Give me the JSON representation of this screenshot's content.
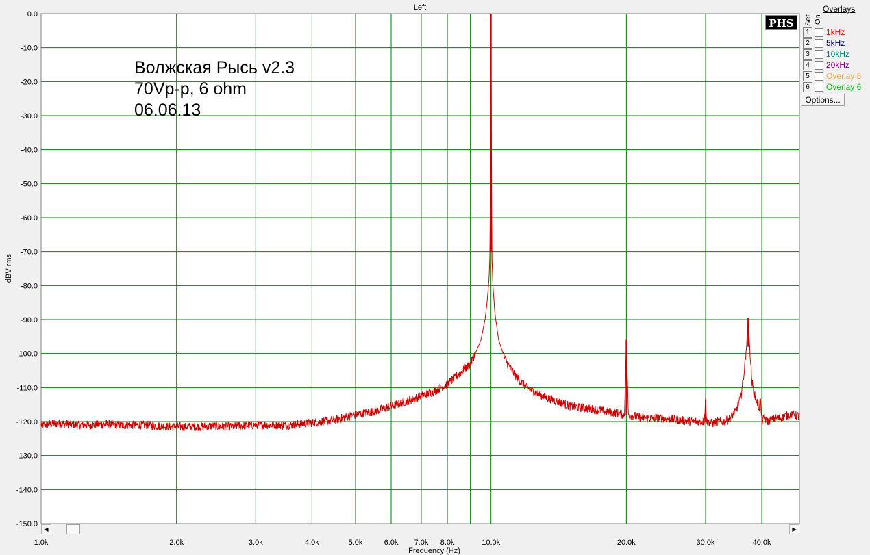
{
  "window": {
    "title": "Left"
  },
  "logo": {
    "text": "PHS"
  },
  "overlays": {
    "title": "Overlays",
    "set_label": "Set",
    "on_label": "On",
    "items": [
      {
        "num": "1",
        "label": "1kHz",
        "color": "#ff0000"
      },
      {
        "num": "2",
        "label": "5kHz",
        "color": "#000080"
      },
      {
        "num": "3",
        "label": "10kHz",
        "color": "#008080"
      },
      {
        "num": "4",
        "label": "20kHz",
        "color": "#800080"
      },
      {
        "num": "5",
        "label": "Overlay 5",
        "color": "#ffa040"
      },
      {
        "num": "6",
        "label": "Overlay 6",
        "color": "#00c000"
      }
    ],
    "options_label": "Options..."
  },
  "chart_data": {
    "type": "line",
    "title": "Left",
    "xlabel": "Frequency (Hz)",
    "ylabel": "dBV rms",
    "x_scale": "log",
    "xlim": [
      1000,
      48500
    ],
    "ylim": [
      -150,
      0
    ],
    "x_tick_labels": [
      {
        "value": 1000,
        "label": "1.0k"
      },
      {
        "value": 2000,
        "label": "2.0k"
      },
      {
        "value": 3000,
        "label": "3.0k"
      },
      {
        "value": 4000,
        "label": "4.0k"
      },
      {
        "value": 5000,
        "label": "5.0k"
      },
      {
        "value": 6000,
        "label": "6.0k"
      },
      {
        "value": 7000,
        "label": "7.0k"
      },
      {
        "value": 8000,
        "label": "8.0k"
      },
      {
        "value": 10000,
        "label": "10.0k"
      },
      {
        "value": 20000,
        "label": "20.0k"
      },
      {
        "value": 30000,
        "label": "30.0k"
      },
      {
        "value": 40000,
        "label": "40.0k"
      }
    ],
    "x_gridlines": [
      2000,
      3000,
      4000,
      5000,
      6000,
      7000,
      8000,
      9000,
      10000,
      20000,
      30000,
      40000
    ],
    "y_tick_labels": [
      "0.0",
      "-10.0",
      "-20.0",
      "-30.0",
      "-40.0",
      "-50.0",
      "-60.0",
      "-70.0",
      "-80.0",
      "-90.0",
      "-100.0",
      "-110.0",
      "-120.0",
      "-130.0",
      "-140.0",
      "-150.0"
    ],
    "y_ticks": [
      0,
      -10,
      -20,
      -30,
      -40,
      -50,
      -60,
      -70,
      -80,
      -90,
      -100,
      -110,
      -120,
      -130,
      -140,
      -150
    ],
    "grid": true,
    "background": "#ffffff",
    "grid_color": "#008000",
    "annotations": [
      "Волжская Рысь v2.3",
      "70Vp-p, 6 ohm",
      "06.06.13"
    ],
    "series": [
      {
        "color": "#cc0000",
        "x": [
          1000,
          1100,
          1200,
          1300,
          1400,
          1500,
          1600,
          1700,
          1800,
          1900,
          2000,
          2200,
          2400,
          2600,
          2800,
          3000,
          3300,
          3600,
          3900,
          4200,
          4500,
          5000,
          5500,
          6000,
          6500,
          7000,
          7500,
          8000,
          8500,
          9000,
          9300,
          9500,
          9700,
          9800,
          9900,
          9950,
          10000,
          10050,
          10100,
          10200,
          10400,
          10700,
          11000,
          11500,
          12000,
          13000,
          14000,
          15000,
          16000,
          17000,
          18000,
          19000,
          19800,
          20000,
          20200,
          21000,
          22000,
          24000,
          26000,
          28000,
          29800,
          30000,
          30200,
          31000,
          32000,
          33000,
          34000,
          35000,
          35500,
          36000,
          36500,
          37000,
          37300,
          37600,
          38000,
          38500,
          39000,
          39500,
          39700,
          40000,
          40500,
          41000,
          42000,
          43000,
          44000,
          45000,
          46000,
          47000,
          48500
        ],
        "y": [
          -121,
          -120.5,
          -121,
          -121,
          -120.8,
          -121,
          -121,
          -121,
          -121.2,
          -121.5,
          -121.5,
          -121.5,
          -121.3,
          -121.5,
          -121.2,
          -121,
          -121,
          -121,
          -120.5,
          -120,
          -119.5,
          -118,
          -117,
          -115.5,
          -114,
          -112.5,
          -111,
          -109,
          -106,
          -103,
          -99,
          -96,
          -90,
          -85,
          -78,
          -70,
          0,
          -72,
          -80,
          -88,
          -96,
          -101,
          -104,
          -107.5,
          -110,
          -112.5,
          -114,
          -115.5,
          -116,
          -116.5,
          -117,
          -117.5,
          -118,
          -96,
          -118,
          -118.5,
          -119,
          -119,
          -119.5,
          -120,
          -120,
          -113.5,
          -120,
          -120.5,
          -120,
          -120,
          -119,
          -117,
          -115,
          -112,
          -106,
          -98,
          -89.5,
          -98,
          -108,
          -112,
          -114,
          -116,
          -113,
          -120,
          -119,
          -120,
          -119.5,
          -119,
          -119,
          -118.5,
          -118,
          -118,
          -118.5
        ]
      }
    ]
  }
}
